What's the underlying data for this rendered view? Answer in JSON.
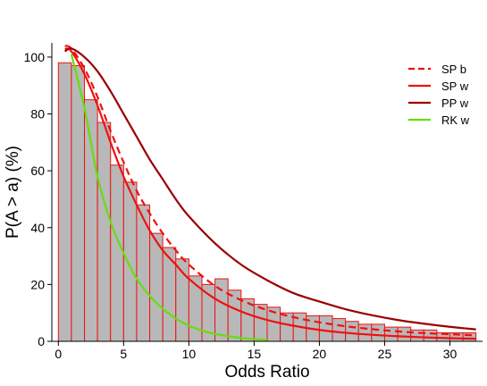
{
  "chart_data": {
    "type": "bar",
    "xlabel": "Odds Ratio",
    "ylabel": "P(A > a) (%)",
    "xlim": [
      -0.5,
      32.5
    ],
    "ylim": [
      0,
      105
    ],
    "xticks": [
      0,
      5,
      10,
      15,
      20,
      25,
      30
    ],
    "yticks": [
      0,
      20,
      40,
      60,
      80,
      100
    ],
    "grid": false,
    "legend_position": "top-right",
    "histogram": {
      "bin_width": 1,
      "bin_starts": [
        0,
        1,
        2,
        3,
        4,
        5,
        6,
        7,
        8,
        9,
        10,
        11,
        12,
        13,
        14,
        15,
        16,
        17,
        18,
        19,
        20,
        21,
        22,
        23,
        24,
        25,
        26,
        27,
        28,
        29,
        30,
        31
      ],
      "values": [
        98,
        97,
        85,
        77,
        62,
        56,
        48,
        38,
        33,
        29,
        23,
        20,
        22,
        18,
        15,
        13,
        12,
        10,
        10,
        9,
        9,
        8,
        7,
        6,
        6,
        5,
        5,
        4,
        4,
        3,
        3,
        3
      ],
      "fill_color": "#b8b8b8",
      "edge_color": "#ee1111"
    },
    "series": [
      {
        "name": "SP b",
        "style": "dashed",
        "color": "#ee1111",
        "x": [
          0.5,
          1,
          2,
          3,
          4,
          5,
          6,
          7,
          8,
          9,
          10,
          12,
          14,
          16,
          18,
          20,
          22,
          24,
          26,
          28,
          30,
          32
        ],
        "y": [
          104,
          103,
          96,
          86,
          74,
          63,
          53,
          45,
          38,
          32,
          27,
          19.5,
          14.5,
          11,
          8.5,
          6.7,
          5.3,
          4.3,
          3.5,
          2.9,
          2.5,
          2.1
        ]
      },
      {
        "name": "SP w",
        "style": "solid",
        "color": "#ee1111",
        "x": [
          0.5,
          1,
          2,
          3,
          4,
          5,
          6,
          7,
          8,
          9,
          10,
          12,
          14,
          16,
          18,
          20,
          22,
          24,
          26,
          28,
          30,
          32
        ],
        "y": [
          103,
          102,
          94,
          83,
          70,
          58,
          48,
          39,
          32,
          27,
          22,
          15,
          10.5,
          7.5,
          5.5,
          4,
          3,
          2.3,
          1.8,
          1.4,
          1.1,
          0.9
        ]
      },
      {
        "name": "PP w",
        "style": "solid",
        "color": "#990000",
        "x": [
          0.5,
          1,
          2,
          3,
          4,
          5,
          6,
          7,
          8,
          9,
          10,
          12,
          14,
          16,
          18,
          20,
          22,
          24,
          26,
          28,
          30,
          32
        ],
        "y": [
          102,
          103,
          100,
          95,
          88,
          80,
          72,
          64,
          57,
          50,
          44,
          34.5,
          27,
          21.5,
          17,
          14,
          11.3,
          9.2,
          7.5,
          6.2,
          5.1,
          4.2
        ]
      },
      {
        "name": "RK w",
        "style": "solid",
        "color": "#66dd11",
        "x": [
          1,
          2,
          3,
          4,
          5,
          6,
          7,
          8,
          9,
          10,
          11,
          12,
          13,
          14,
          15,
          16
        ],
        "y": [
          101,
          82,
          58,
          42,
          31,
          22,
          16,
          11.5,
          8,
          5.5,
          3.8,
          2.6,
          1.8,
          1.2,
          0.8,
          0.5
        ]
      }
    ]
  }
}
